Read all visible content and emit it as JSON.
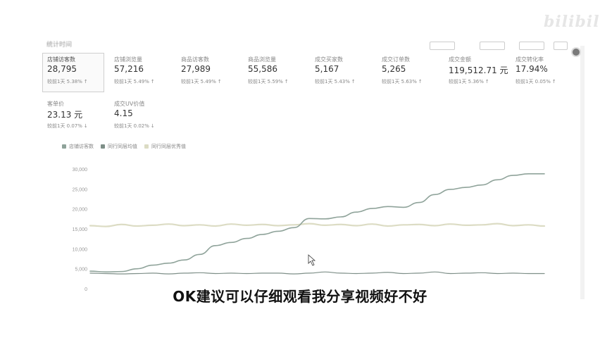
{
  "watermark": "bilibili",
  "header": {
    "date_text": "统计时间",
    "buttons": [
      "",
      "",
      "",
      ""
    ]
  },
  "metrics": [
    {
      "label": "店铺访客数",
      "value": "28,795",
      "compare": "较前1天 5.38%",
      "arrow": "↑",
      "active": true
    },
    {
      "label": "店铺浏览量",
      "value": "57,216",
      "compare": "较前1天 5.49%",
      "arrow": "↑"
    },
    {
      "label": "商品访客数",
      "value": "27,989",
      "compare": "较前1天 5.49%",
      "arrow": "↑"
    },
    {
      "label": "商品浏览量",
      "value": "55,586",
      "compare": "较前1天 5.59%",
      "arrow": "↑"
    },
    {
      "label": "成交买家数",
      "value": "5,167",
      "compare": "较前1天 5.43%",
      "arrow": "↑"
    },
    {
      "label": "成交订单数",
      "value": "5,265",
      "compare": "较前1天 5.63%",
      "arrow": "↑"
    },
    {
      "label": "成交金额",
      "value": "119,512.71 元",
      "compare": "较前1天 5.36%",
      "arrow": "↑"
    },
    {
      "label": "成交转化率",
      "value": "17.94%",
      "compare": "较前1天 0.05%",
      "arrow": "↑"
    },
    {
      "label": "客单价",
      "value": "23.13 元",
      "compare": "较前1天 0.07%",
      "arrow": "↓"
    },
    {
      "label": "成交UV价值",
      "value": "4.15",
      "compare": "较前1天 0.02%",
      "arrow": "↓"
    }
  ],
  "subtitle": "OK建议可以仔细观看我分享视频好不好",
  "colors": {
    "series1": "#8fa39a",
    "series2": "#7e8f88",
    "series3": "#dcdcc4",
    "axis_text": "#999999",
    "grid": "#eeeeee"
  },
  "chart_data": {
    "type": "line",
    "title": "",
    "xlabel": "",
    "ylabel": "",
    "ylim": [
      0,
      30000
    ],
    "yticks": [
      "30,000",
      "25,000",
      "20,000",
      "15,000",
      "10,000",
      "5,000",
      "0"
    ],
    "ytick_values": [
      30000,
      25000,
      20000,
      15000,
      10000,
      5000,
      0
    ],
    "grid": false,
    "legend_position": "top-left",
    "x": [
      1,
      2,
      3,
      4,
      5,
      6,
      7,
      8,
      9,
      10,
      11,
      12,
      13,
      14,
      15,
      16,
      17,
      18,
      19,
      20,
      21,
      22,
      23,
      24,
      25,
      26,
      27,
      28,
      29,
      30
    ],
    "series": [
      {
        "name": "店铺访客数",
        "color": "#8fa39a",
        "width": 1.6,
        "values": [
          4400,
          4200,
          4300,
          5000,
          5900,
          6400,
          7200,
          8600,
          10800,
          11600,
          12600,
          13600,
          14400,
          15300,
          17600,
          17500,
          18000,
          19200,
          20100,
          20600,
          20400,
          21600,
          23600,
          24900,
          25400,
          26000,
          27300,
          28400,
          28800,
          28795
        ]
      },
      {
        "name": "同行同层均值",
        "color": "#7e8f88",
        "width": 1.2,
        "values": [
          3900,
          3800,
          3700,
          3800,
          3900,
          3700,
          3900,
          4000,
          3800,
          3900,
          3800,
          3900,
          3900,
          3700,
          3900,
          4200,
          3900,
          3800,
          3900,
          4100,
          3800,
          3900,
          4200,
          3800,
          3900,
          4000,
          3800,
          3900,
          3800,
          3800
        ]
      },
      {
        "name": "同行同层优秀值",
        "color": "#dcdcc4",
        "width": 2.2,
        "values": [
          15800,
          15600,
          16100,
          15700,
          15900,
          16200,
          15800,
          16000,
          15700,
          16200,
          15900,
          16100,
          15800,
          16000,
          16300,
          15900,
          16100,
          15800,
          16200,
          15700,
          16000,
          16100,
          15800,
          16200,
          15900,
          16000,
          16300,
          15800,
          16000,
          15700
        ]
      }
    ]
  }
}
